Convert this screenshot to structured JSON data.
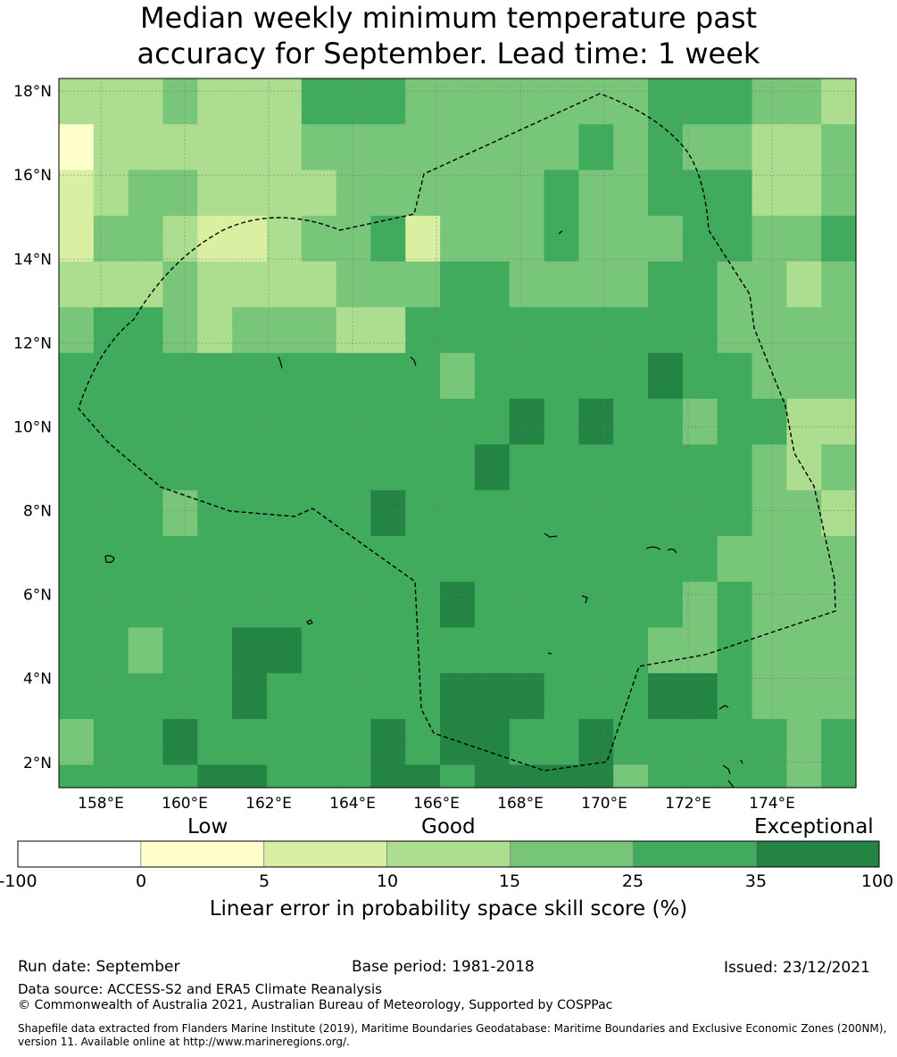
{
  "title_line1": "Median weekly minimum temperature past",
  "title_line2": "accuracy for September. Lead time: 1 week",
  "map": {
    "lon_labels": [
      "158°E",
      "160°E",
      "162°E",
      "164°E",
      "166°E",
      "168°E",
      "170°E",
      "172°E",
      "174°E"
    ],
    "lat_labels": [
      "18°N",
      "16°N",
      "14°N",
      "12°N",
      "10°N",
      "8°N",
      "6°N",
      "4°N",
      "2°N"
    ],
    "lon_values": [
      158,
      160,
      162,
      164,
      166,
      168,
      170,
      172,
      174
    ],
    "lat_values": [
      18,
      16,
      14,
      12,
      10,
      8,
      6,
      4,
      2
    ],
    "lon_range": [
      157,
      176
    ],
    "lat_range": [
      1.4,
      18.3
    ],
    "grid_cols": 23,
    "grid_rows": 31,
    "grid": [
      "22232224443333333444332",
      "22232224443333333444332",
      "02222223333333343433223",
      "02222223333333343433223",
      "12332222333333433444223",
      "12332222333333433444223",
      "13321123341333433344334",
      "13321123341333433344334",
      "22232222333443333443323",
      "22232222333443333443323",
      "34432333224444444443333",
      "34432333224444444443333",
      "44444444444344444544333",
      "44444444444344444544333",
      "44444444444445454434422",
      "44444444444445454434422",
      "44444444444454444444323",
      "44444444444454444444323",
      "44434444454444444444332",
      "44434444454444444444332",
      "44444444444444444443333",
      "44444444444444444443333",
      "44444444444544444434333",
      "44444444444544444434333",
      "44344554444444444334333",
      "44344554444444444334333",
      "44444544444555444554333",
      "44444544444555444554333",
      "34454444454554454444434",
      "34454444454554454444434",
      "44445544455455553444434"
    ],
    "palette": [
      "#ffffcc",
      "#d9f0a3",
      "#addd8e",
      "#78c679",
      "#41ab5d",
      "#238443",
      "#ffffff"
    ]
  },
  "colorbar": {
    "category_low": "Low",
    "category_good": "Good",
    "category_exceptional": "Exceptional",
    "ticks": [
      "-100",
      "0",
      "5",
      "10",
      "15",
      "25",
      "35",
      "100"
    ],
    "colors": [
      "#ffffff",
      "#ffffcc",
      "#d9f0a3",
      "#addd8e",
      "#78c679",
      "#41ab5d",
      "#238443"
    ],
    "axis_title": "Linear error in probability space skill score (%)"
  },
  "footer": {
    "run_date": "Run date: September",
    "base_period": "Base period: 1981-2018",
    "issued": "Issued: 23/12/2021",
    "data_source": "Data source: ACCESS-S2 and ERA5 Climate Reanalysis",
    "copyright": "© Commonwealth of Australia 2021, Australian Bureau of Meteorology, Supported by COSPPac",
    "shapefile_line1": "Shapefile data extracted from Flanders Marine Institute (2019), Maritime Boundaries Geodatabase: Maritime Boundaries and Exclusive Economic Zones (200NM),",
    "shapefile_line2": "version 11. Available online at http://www.marineregions.org/."
  }
}
